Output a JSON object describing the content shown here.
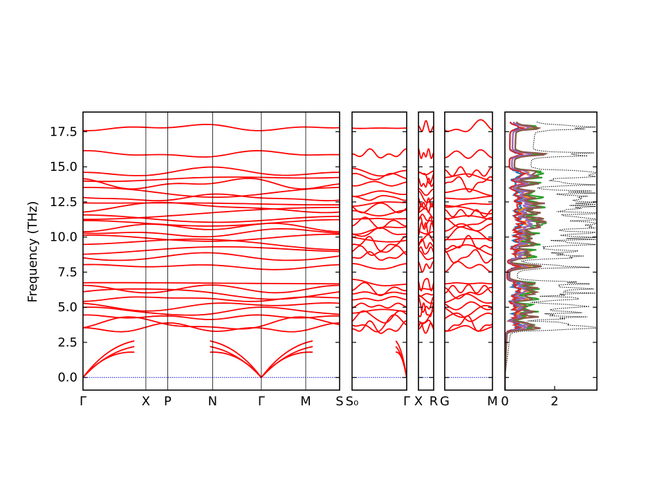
{
  "chart_data": {
    "type": "line",
    "ylabel": "Frequency (THz)",
    "ylim": [
      -0.9,
      18.9
    ],
    "yticks": [
      0.0,
      2.5,
      5.0,
      7.5,
      10.0,
      12.5,
      15.0,
      17.5
    ],
    "ytick_labels": [
      "0.0",
      "2.5",
      "5.0",
      "7.5",
      "10.0",
      "12.5",
      "15.0",
      "17.5"
    ],
    "band_color": "#ff0000",
    "zero_line_color": "#0000cd",
    "panels": [
      {
        "id": "p1",
        "labels": [
          "Γ",
          "X",
          "P",
          "N",
          "Γ",
          "M",
          "S"
        ],
        "label_fracs": [
          0.0,
          0.245,
          0.33,
          0.505,
          0.695,
          0.868,
          1.0
        ]
      },
      {
        "id": "p2",
        "labels": [
          "S₀",
          "Γ"
        ],
        "label_fracs": [
          0.0,
          1.0
        ]
      },
      {
        "id": "p3",
        "labels": [
          "X",
          "R"
        ],
        "label_fracs": [
          0.0,
          1.0
        ]
      },
      {
        "id": "p4",
        "labels": [
          "G",
          "M"
        ],
        "label_fracs": [
          0.0,
          1.0
        ]
      }
    ],
    "dos_panel": {
      "xticks": [
        0,
        2
      ],
      "xtick_labels": [
        "0",
        "2"
      ],
      "xlim": [
        0,
        3.7
      ],
      "series_colors": [
        "#1f77b4",
        "#ff7f0e",
        "#2ca02c",
        "#d62728",
        "#9467bd",
        "#8c564b"
      ],
      "total_color": "#000000"
    }
  }
}
